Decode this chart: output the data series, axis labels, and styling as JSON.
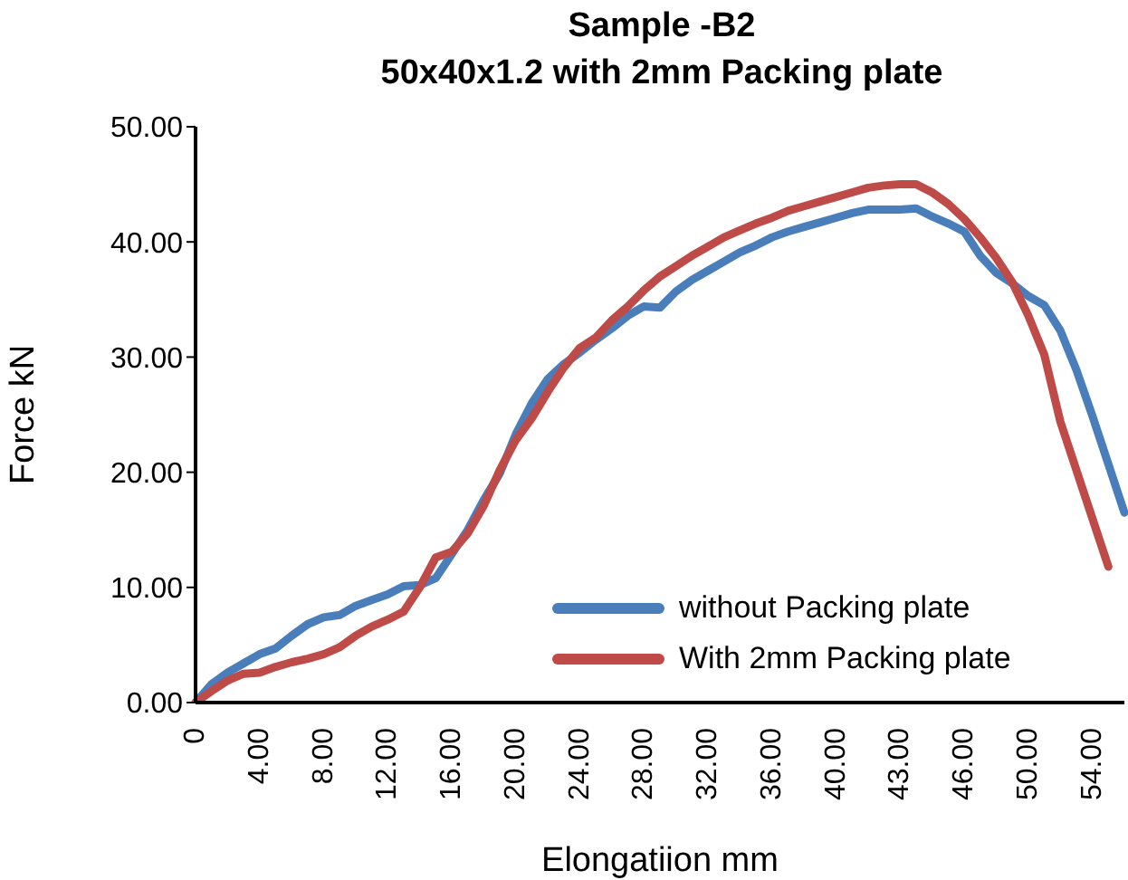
{
  "chart_data": {
    "type": "line",
    "title": "Sample -B2",
    "subtitle": "50x40x1.2 with 2mm Packing plate",
    "xlabel": "Elongatiion mm",
    "ylabel": "Force kN",
    "categories": [
      "0",
      null,
      null,
      null,
      "4.00",
      null,
      null,
      null,
      "8.00",
      null,
      null,
      null,
      "12.00",
      null,
      null,
      null,
      "16.00",
      null,
      null,
      null,
      "20.00",
      null,
      null,
      null,
      "24.00",
      null,
      null,
      null,
      "28.00",
      null,
      null,
      null,
      "32.00",
      null,
      null,
      null,
      "36.00",
      null,
      null,
      null,
      "40.00",
      null,
      null,
      null,
      "43.00",
      null,
      null,
      null,
      "46.00",
      null,
      null,
      null,
      "50.00",
      null,
      null,
      null,
      "54.00",
      null,
      null
    ],
    "series": [
      {
        "name": "without Packing plate",
        "color": "#4a7ebb",
        "values": [
          0,
          1.6,
          2.6,
          3.4,
          4.2,
          4.7,
          5.8,
          6.8,
          7.4,
          7.6,
          8.4,
          8.9,
          9.4,
          10.1,
          10.2,
          10.8,
          12.9,
          15.0,
          17.6,
          19.9,
          23.3,
          26.0,
          28.1,
          29.4,
          30.4,
          31.5,
          32.5,
          33.6,
          34.4,
          34.3,
          35.7,
          36.7,
          37.5,
          38.3,
          39.1,
          39.7,
          40.4,
          40.9,
          41.3,
          41.7,
          42.1,
          42.5,
          42.8,
          42.8,
          42.8,
          42.9,
          42.2,
          41.6,
          40.9,
          38.8,
          37.3,
          36.4,
          35.3,
          34.5,
          32.3,
          28.9,
          24.9,
          20.7,
          16.5
        ]
      },
      {
        "name": "With 2mm Packing plate",
        "color": "#be4b48",
        "values": [
          0,
          1.0,
          1.9,
          2.5,
          2.6,
          3.1,
          3.5,
          3.8,
          4.2,
          4.8,
          5.8,
          6.6,
          7.2,
          7.9,
          10.0,
          12.6,
          13.1,
          14.7,
          17.1,
          20.2,
          22.8,
          24.7,
          27.0,
          29.1,
          30.8,
          31.7,
          33.2,
          34.4,
          35.8,
          37.0,
          37.9,
          38.8,
          39.6,
          40.4,
          41.0,
          41.6,
          42.1,
          42.7,
          43.1,
          43.5,
          43.9,
          44.3,
          44.7,
          44.9,
          45.0,
          45.0,
          44.3,
          43.3,
          42.0,
          40.4,
          38.6,
          36.5,
          33.6,
          30.2,
          24.4,
          20.2,
          16.0,
          11.8,
          null
        ]
      }
    ],
    "ylim": [
      0,
      50
    ],
    "yticks": [
      {
        "value": 0,
        "label": "0.00"
      },
      {
        "value": 10,
        "label": "10.00"
      },
      {
        "value": 20,
        "label": "20.00"
      },
      {
        "value": 30,
        "label": "30.00"
      },
      {
        "value": 40,
        "label": "40.00"
      },
      {
        "value": 50,
        "label": "50.00"
      }
    ],
    "grid": false,
    "legend": "bottom right",
    "marker": "none",
    "line_style": "solid"
  }
}
